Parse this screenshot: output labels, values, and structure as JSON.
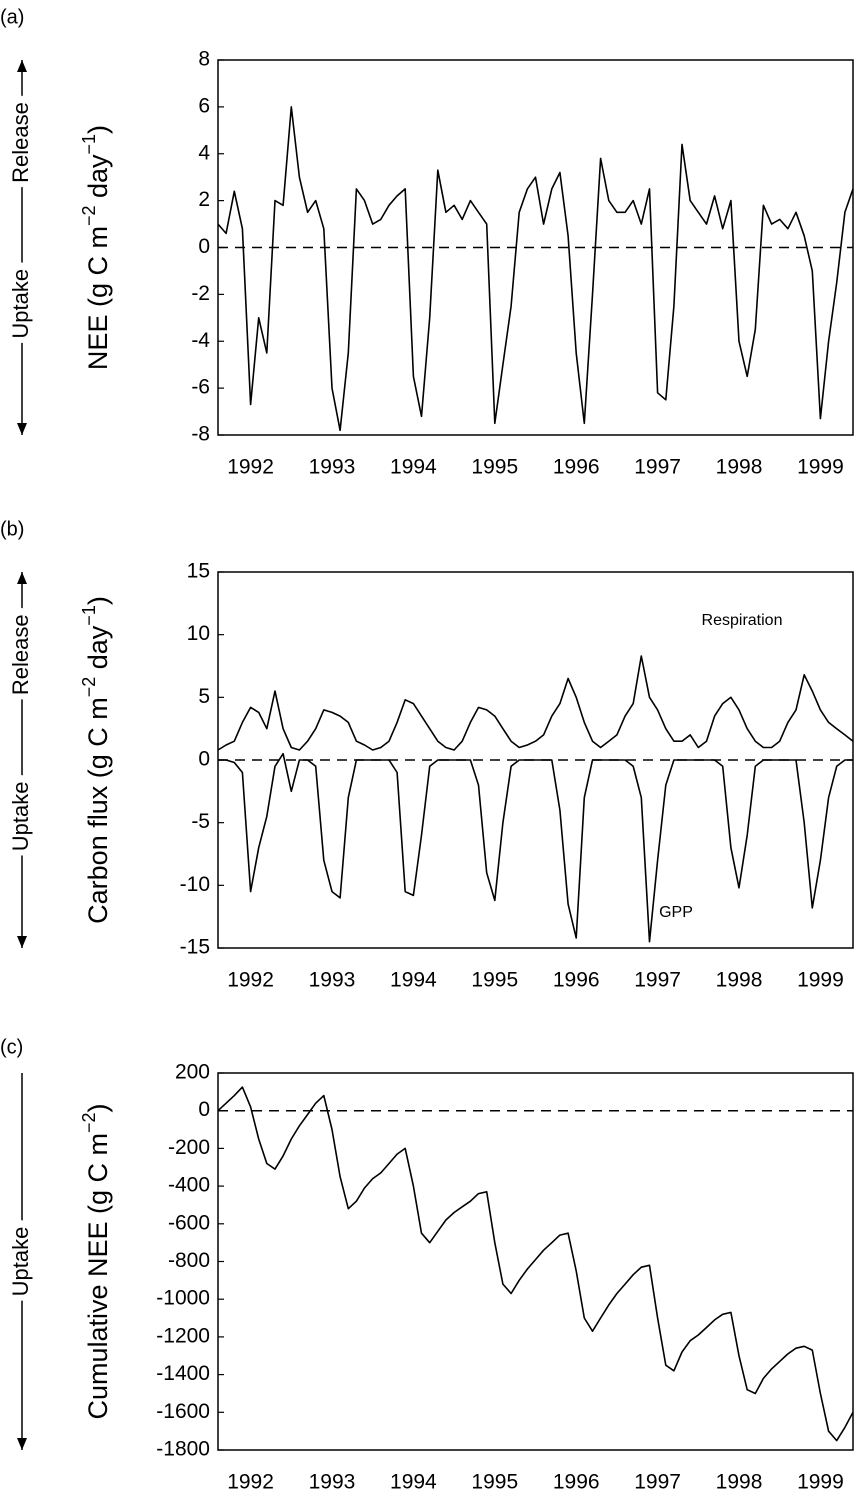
{
  "chart_data": [
    {
      "type": "line",
      "panel_label": "(a)",
      "side_labels": [
        "Uptake",
        "Release"
      ],
      "ylabel": [
        "NEE (g C m",
        "−2",
        " day",
        "−1",
        ")"
      ],
      "xlim": [
        1992.1,
        1999.9
      ],
      "ylim": [
        -8,
        8
      ],
      "yticks": [
        -8,
        -6,
        -4,
        -2,
        0,
        2,
        4,
        6,
        8
      ],
      "xticks": [
        {
          "value": 1992.5,
          "label": "1992"
        },
        {
          "value": 1993.5,
          "label": "1993"
        },
        {
          "value": 1994.5,
          "label": "1994"
        },
        {
          "value": 1995.5,
          "label": "1995"
        },
        {
          "value": 1996.5,
          "label": "1996"
        },
        {
          "value": 1997.5,
          "label": "1997"
        },
        {
          "value": 1998.5,
          "label": "1998"
        },
        {
          "value": 1999.5,
          "label": "1999"
        }
      ],
      "hline": 0,
      "x": [
        1992.1,
        1992.2,
        1992.3,
        1992.4,
        1992.5,
        1992.6,
        1992.7,
        1992.8,
        1992.9,
        1993.0,
        1993.1,
        1993.2,
        1993.3,
        1993.4,
        1993.5,
        1993.6,
        1993.7,
        1993.8,
        1993.9,
        1994.0,
        1994.1,
        1994.2,
        1994.3,
        1994.4,
        1994.5,
        1994.6,
        1994.7,
        1994.8,
        1994.9,
        1995.0,
        1995.1,
        1995.2,
        1995.3,
        1995.4,
        1995.5,
        1995.6,
        1995.7,
        1995.8,
        1995.9,
        1996.0,
        1996.1,
        1996.2,
        1996.3,
        1996.4,
        1996.5,
        1996.6,
        1996.7,
        1996.8,
        1996.9,
        1997.0,
        1997.1,
        1997.2,
        1997.3,
        1997.4,
        1997.5,
        1997.6,
        1997.7,
        1997.8,
        1997.9,
        1998.0,
        1998.1,
        1998.2,
        1998.3,
        1998.4,
        1998.5,
        1998.6,
        1998.7,
        1998.8,
        1998.9,
        1999.0,
        1999.1,
        1999.2,
        1999.3,
        1999.4,
        1999.5,
        1999.6,
        1999.7,
        1999.8,
        1999.9
      ],
      "series": [
        {
          "color": "#000000",
          "values": [
            1.0,
            0.6,
            2.4,
            0.8,
            -6.7,
            -3.0,
            -4.5,
            2.0,
            1.8,
            6.0,
            3.0,
            1.5,
            2.0,
            0.8,
            -6.0,
            -7.8,
            -4.5,
            2.5,
            2.0,
            1.0,
            1.2,
            1.8,
            2.2,
            2.5,
            -5.5,
            -7.2,
            -3.0,
            3.3,
            1.5,
            1.8,
            1.2,
            2.0,
            1.5,
            1.0,
            -7.5,
            -5.0,
            -2.5,
            1.5,
            2.5,
            3.0,
            1.0,
            2.5,
            3.2,
            0.5,
            -4.5,
            -7.5,
            -2.0,
            3.8,
            2.0,
            1.5,
            1.5,
            2.0,
            1.0,
            2.5,
            -6.2,
            -6.5,
            -2.5,
            4.4,
            2.0,
            1.5,
            1.0,
            2.2,
            0.8,
            2.0,
            -4.0,
            -5.5,
            -3.5,
            1.8,
            1.0,
            1.2,
            0.8,
            1.5,
            0.5,
            -1.0,
            -7.3,
            -4.0,
            -1.5,
            1.5,
            2.5
          ]
        }
      ]
    },
    {
      "type": "line",
      "panel_label": "(b)",
      "side_labels": [
        "Uptake",
        "Release"
      ],
      "ylabel": [
        "Carbon flux (g C m",
        "−2",
        " day",
        "−1",
        ")"
      ],
      "annotations": [
        "Respiration",
        "GPP"
      ],
      "xlim": [
        1992.1,
        1999.9
      ],
      "ylim": [
        -15,
        15
      ],
      "yticks": [
        -15,
        -10,
        -5,
        0,
        5,
        10,
        15
      ],
      "xticks": [
        {
          "value": 1992.5,
          "label": "1992"
        },
        {
          "value": 1993.5,
          "label": "1993"
        },
        {
          "value": 1994.5,
          "label": "1994"
        },
        {
          "value": 1995.5,
          "label": "1995"
        },
        {
          "value": 1996.5,
          "label": "1996"
        },
        {
          "value": 1997.5,
          "label": "1997"
        },
        {
          "value": 1998.5,
          "label": "1998"
        },
        {
          "value": 1999.5,
          "label": "1999"
        }
      ],
      "hline": 0,
      "x": [
        1992.1,
        1992.2,
        1992.3,
        1992.4,
        1992.5,
        1992.6,
        1992.7,
        1992.8,
        1992.9,
        1993.0,
        1993.1,
        1993.2,
        1993.3,
        1993.4,
        1993.5,
        1993.6,
        1993.7,
        1993.8,
        1993.9,
        1994.0,
        1994.1,
        1994.2,
        1994.3,
        1994.4,
        1994.5,
        1994.6,
        1994.7,
        1994.8,
        1994.9,
        1995.0,
        1995.1,
        1995.2,
        1995.3,
        1995.4,
        1995.5,
        1995.6,
        1995.7,
        1995.8,
        1995.9,
        1996.0,
        1996.1,
        1996.2,
        1996.3,
        1996.4,
        1996.5,
        1996.6,
        1996.7,
        1996.8,
        1996.9,
        1997.0,
        1997.1,
        1997.2,
        1997.3,
        1997.4,
        1997.5,
        1997.6,
        1997.7,
        1997.8,
        1997.9,
        1998.0,
        1998.1,
        1998.2,
        1998.3,
        1998.4,
        1998.5,
        1998.6,
        1998.7,
        1998.8,
        1998.9,
        1999.0,
        1999.1,
        1999.2,
        1999.3,
        1999.4,
        1999.5,
        1999.6,
        1999.7,
        1999.8,
        1999.9
      ],
      "series": [
        {
          "color": "#000000",
          "values": [
            0.8,
            1.2,
            1.5,
            3.0,
            4.2,
            3.8,
            2.5,
            5.5,
            2.5,
            1.0,
            0.8,
            1.5,
            2.5,
            4.0,
            3.8,
            3.5,
            3.0,
            1.5,
            1.2,
            0.8,
            1.0,
            1.5,
            3.0,
            4.8,
            4.5,
            3.5,
            2.5,
            1.5,
            1.0,
            0.8,
            1.5,
            3.0,
            4.2,
            4.0,
            3.5,
            2.5,
            1.5,
            1.0,
            1.2,
            1.5,
            2.0,
            3.5,
            4.5,
            6.5,
            5.0,
            3.0,
            1.5,
            1.0,
            1.5,
            2.0,
            3.5,
            4.5,
            8.3,
            5.0,
            4.0,
            2.5,
            1.5,
            1.5,
            2.0,
            1.0,
            1.5,
            3.5,
            4.5,
            5.0,
            4.0,
            2.5,
            1.5,
            1.0,
            1.0,
            1.5,
            3.0,
            4.0,
            6.8,
            5.5,
            4.0,
            3.0,
            2.5,
            2.0,
            1.5
          ]
        },
        {
          "color": "#000000",
          "values": [
            0,
            0,
            -0.2,
            -1.0,
            -10.5,
            -7.0,
            -4.5,
            -0.5,
            0.5,
            -2.5,
            0,
            0,
            -0.5,
            -8.0,
            -10.5,
            -11.0,
            -3.0,
            0,
            0,
            0,
            0,
            0,
            -1.0,
            -10.5,
            -10.8,
            -6.0,
            -0.5,
            0,
            0,
            0,
            0,
            0,
            -2.0,
            -9.0,
            -11.2,
            -5.0,
            -0.5,
            0,
            0,
            0,
            0,
            0,
            -4.0,
            -11.5,
            -14.2,
            -3.0,
            0,
            0,
            0,
            0,
            0,
            -0.5,
            -3.0,
            -14.5,
            -8.0,
            -2.0,
            0,
            0,
            0,
            0,
            0,
            0,
            -0.5,
            -7.0,
            -10.2,
            -6.0,
            -0.5,
            0,
            0,
            0,
            0,
            0,
            -5.0,
            -11.8,
            -8.0,
            -3.0,
            -0.5,
            0,
            0
          ]
        }
      ]
    },
    {
      "type": "line",
      "panel_label": "(c)",
      "side_labels": [
        "Uptake"
      ],
      "ylabel": [
        "Cumulative NEE (g C m",
        "−2",
        ")"
      ],
      "xlim": [
        1992.1,
        1999.9
      ],
      "ylim": [
        -1800,
        200
      ],
      "yticks": [
        -1800,
        -1600,
        -1400,
        -1200,
        -1000,
        -800,
        -600,
        -400,
        -200,
        0,
        200
      ],
      "xticks": [
        {
          "value": 1992.5,
          "label": "1992"
        },
        {
          "value": 1993.5,
          "label": "1993"
        },
        {
          "value": 1994.5,
          "label": "1994"
        },
        {
          "value": 1995.5,
          "label": "1995"
        },
        {
          "value": 1996.5,
          "label": "1996"
        },
        {
          "value": 1997.5,
          "label": "1997"
        },
        {
          "value": 1998.5,
          "label": "1998"
        },
        {
          "value": 1999.5,
          "label": "1999"
        }
      ],
      "hline": 0,
      "x": [
        1992.1,
        1992.2,
        1992.3,
        1992.4,
        1992.5,
        1992.6,
        1992.7,
        1992.8,
        1992.9,
        1993.0,
        1993.1,
        1993.2,
        1993.3,
        1993.4,
        1993.5,
        1993.6,
        1993.7,
        1993.8,
        1993.9,
        1994.0,
        1994.1,
        1994.2,
        1994.3,
        1994.4,
        1994.5,
        1994.6,
        1994.7,
        1994.8,
        1994.9,
        1995.0,
        1995.1,
        1995.2,
        1995.3,
        1995.4,
        1995.5,
        1995.6,
        1995.7,
        1995.8,
        1995.9,
        1996.0,
        1996.1,
        1996.2,
        1996.3,
        1996.4,
        1996.5,
        1996.6,
        1996.7,
        1996.8,
        1996.9,
        1997.0,
        1997.1,
        1997.2,
        1997.3,
        1997.4,
        1997.5,
        1997.6,
        1997.7,
        1997.8,
        1997.9,
        1998.0,
        1998.1,
        1998.2,
        1998.3,
        1998.4,
        1998.5,
        1998.6,
        1998.7,
        1998.8,
        1998.9,
        1999.0,
        1999.1,
        1999.2,
        1999.3,
        1999.4,
        1999.5,
        1999.6,
        1999.7,
        1999.8,
        1999.9
      ],
      "series": [
        {
          "color": "#000000",
          "values": [
            0,
            40,
            80,
            125,
            20,
            -150,
            -280,
            -310,
            -240,
            -150,
            -80,
            -20,
            40,
            80,
            -100,
            -350,
            -520,
            -480,
            -410,
            -360,
            -330,
            -280,
            -230,
            -200,
            -400,
            -650,
            -700,
            -640,
            -580,
            -540,
            -510,
            -480,
            -440,
            -430,
            -700,
            -920,
            -970,
            -900,
            -840,
            -790,
            -740,
            -700,
            -660,
            -650,
            -850,
            -1100,
            -1170,
            -1100,
            -1030,
            -970,
            -920,
            -870,
            -830,
            -820,
            -1100,
            -1350,
            -1380,
            -1280,
            -1220,
            -1190,
            -1150,
            -1110,
            -1080,
            -1070,
            -1300,
            -1480,
            -1500,
            -1420,
            -1370,
            -1330,
            -1290,
            -1260,
            -1250,
            -1270,
            -1500,
            -1700,
            -1750,
            -1680,
            -1600
          ]
        }
      ]
    }
  ]
}
